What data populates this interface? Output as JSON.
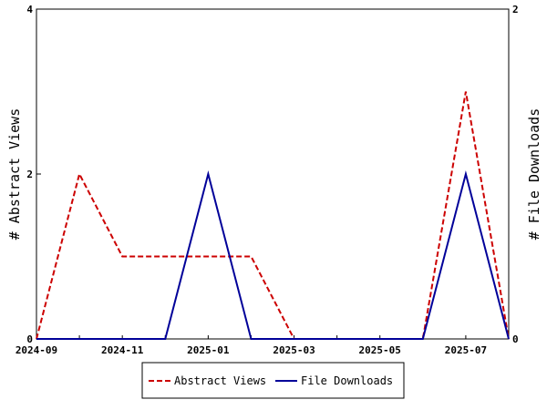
{
  "chart_data": {
    "type": "line",
    "title": "",
    "x_tick_labels": [
      "2024-09",
      "2024-11",
      "2025-01",
      "2025-03",
      "2025-05",
      "2025-07"
    ],
    "x_months": [
      "2024-09",
      "2024-10",
      "2024-11",
      "2024-12",
      "2025-01",
      "2025-02",
      "2025-03",
      "2025-04",
      "2025-05",
      "2025-06",
      "2025-07",
      "2025-08"
    ],
    "y_left": {
      "label": "# Abstract Views",
      "ylim": [
        0,
        4
      ],
      "ticks": [
        "0",
        "2",
        "4"
      ]
    },
    "y_right": {
      "label": "# File Downloads",
      "ylim": [
        0,
        2
      ],
      "ticks": [
        "0",
        "2"
      ]
    },
    "series": [
      {
        "name": "Abstract Views",
        "axis": "left",
        "color": "#cc0000",
        "style": "dashed",
        "values": [
          0,
          2,
          1,
          1,
          1,
          1,
          0,
          0,
          0,
          0,
          3,
          0
        ]
      },
      {
        "name": "File Downloads",
        "axis": "right",
        "color": "#000099",
        "style": "solid",
        "values": [
          0,
          0,
          0,
          0,
          1,
          0,
          0,
          0,
          0,
          0,
          1,
          0
        ]
      }
    ],
    "grid": false,
    "legend_position": "bottom"
  }
}
